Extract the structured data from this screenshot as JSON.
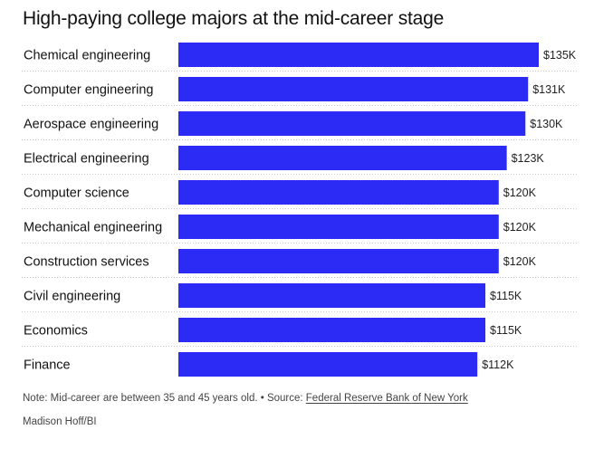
{
  "chart_data": {
    "type": "bar",
    "orientation": "horizontal",
    "title": "High-paying college majors at the mid-career stage",
    "categories": [
      "Chemical engineering",
      "Computer engineering",
      "Aerospace engineering",
      "Electrical engineering",
      "Computer science",
      "Mechanical engineering",
      "Construction services",
      "Civil engineering",
      "Economics",
      "Finance"
    ],
    "values": [
      135,
      131,
      130,
      123,
      120,
      120,
      120,
      115,
      115,
      112
    ],
    "value_labels": [
      "$135K",
      "$131K",
      "$130K",
      "$123K",
      "$120K",
      "$120K",
      "$120K",
      "$115K",
      "$115K",
      "$112K"
    ],
    "unit": "thousand USD",
    "xlim": [
      0,
      135
    ],
    "xlabel": "",
    "ylabel": "",
    "bar_color": "#2b2bf5",
    "grid": false,
    "legend": "none"
  },
  "footer": {
    "note_prefix": "Note: Mid-career are between 35 and 45 years old. • Source: ",
    "source_link": "Federal Reserve Bank of New York",
    "credit": "Madison Hoff/BI"
  }
}
